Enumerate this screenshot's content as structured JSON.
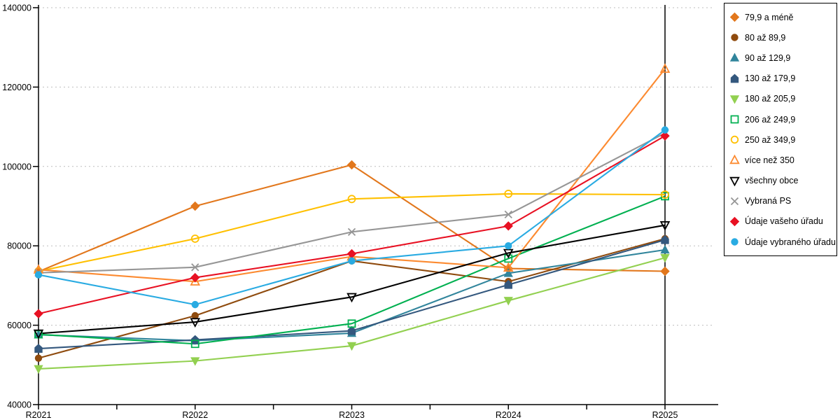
{
  "chart_data": {
    "type": "line",
    "title": "",
    "xlabel": "",
    "ylabel": "",
    "categories": [
      "R2021",
      "R2022",
      "R2023",
      "R2024",
      "R2025"
    ],
    "ylim": [
      40000,
      140000
    ],
    "y_ticks": [
      40000,
      60000,
      80000,
      100000,
      120000,
      140000
    ],
    "y_tick_labels": [
      "40000",
      "60000",
      "80000",
      "100000",
      "120000",
      "140000"
    ],
    "grid": "horizontal-dashed",
    "legend_position": "right",
    "series": [
      {
        "name": "79,9 a méně",
        "marker": "diamond-filled",
        "color": "#E2771C",
        "values": [
          73500,
          90000,
          100400,
          74300,
          73600
        ]
      },
      {
        "name": "80 až 89,9",
        "marker": "circle-filled",
        "color": "#8F4B0E",
        "values": [
          51700,
          62400,
          76200,
          71000,
          81800
        ]
      },
      {
        "name": "90 až 129,9",
        "marker": "triangle-up-filled",
        "color": "#31859C",
        "values": [
          57600,
          56100,
          58000,
          73100,
          79000
        ]
      },
      {
        "name": "130 až 179,9",
        "marker": "pentagon-filled",
        "color": "#34587E",
        "values": [
          54100,
          56300,
          58600,
          70200,
          81500
        ]
      },
      {
        "name": "180 až 205,9",
        "marker": "triangle-down-filled",
        "color": "#92D050",
        "values": [
          49000,
          51000,
          54800,
          66200,
          77000
        ]
      },
      {
        "name": "206 až 249,9",
        "marker": "square-open",
        "color": "#00B050",
        "values": [
          57700,
          55300,
          60400,
          76800,
          92500
        ]
      },
      {
        "name": "250 až 349,9",
        "marker": "circle-open",
        "color": "#FFC000",
        "values": [
          73600,
          81800,
          91800,
          93100,
          92900
        ]
      },
      {
        "name": "více než 350",
        "marker": "triangle-up-open",
        "color": "#FC8A30",
        "values": [
          74000,
          71000,
          77300,
          74500,
          124600
        ]
      },
      {
        "name": "všechny obce",
        "marker": "triangle-down-open",
        "color": "#000000",
        "values": [
          57900,
          60800,
          67100,
          78200,
          85200
        ]
      },
      {
        "name": "Vybraná PS",
        "marker": "x",
        "color": "#969696",
        "values": [
          73200,
          74600,
          83500,
          87900,
          108400
        ]
      },
      {
        "name": "Údaje vašeho úřadu",
        "marker": "diamond-filled",
        "color": "#E81123",
        "values": [
          62900,
          72000,
          78000,
          85000,
          107700
        ]
      },
      {
        "name": "Údaje vybraného úřadu",
        "marker": "circle-filled",
        "color": "#29ABE2",
        "values": [
          72700,
          65200,
          76200,
          80000,
          109200
        ]
      }
    ],
    "colors": {
      "axis": "#000000",
      "gridline": "#BEBEBE",
      "background": "#FFFFFF"
    }
  }
}
